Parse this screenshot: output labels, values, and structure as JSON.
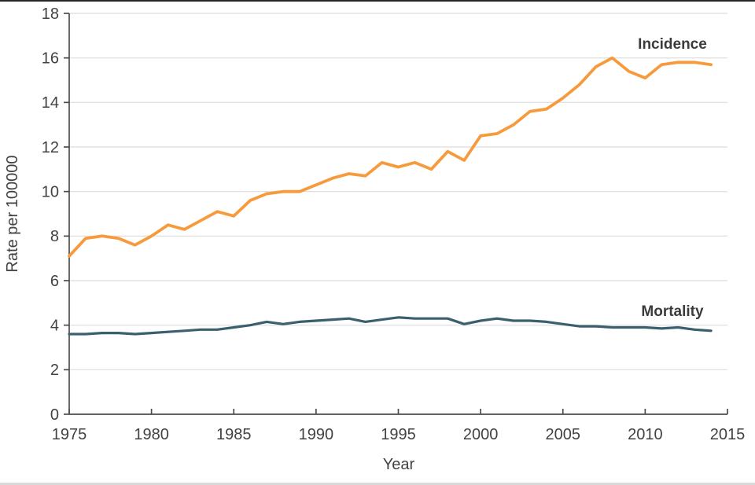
{
  "figure": {
    "xlabel_text": "Year",
    "ylabel_text": "Rate per 100000"
  },
  "chart_data": {
    "type": "line",
    "title": "",
    "xlabel": "Year",
    "ylabel": "Rate per 100000",
    "xlim": [
      1975,
      2015
    ],
    "ylim": [
      0,
      18
    ],
    "xticks": [
      1975,
      1980,
      1985,
      1990,
      1995,
      2000,
      2005,
      2010,
      2015
    ],
    "yticks": [
      0,
      2,
      4,
      6,
      8,
      10,
      12,
      14,
      16,
      18
    ],
    "grid": true,
    "legend_position": "inline-labels-right",
    "x": [
      1975,
      1976,
      1977,
      1978,
      1979,
      1980,
      1981,
      1982,
      1983,
      1984,
      1985,
      1986,
      1987,
      1988,
      1989,
      1990,
      1991,
      1992,
      1993,
      1994,
      1995,
      1996,
      1997,
      1998,
      1999,
      2000,
      2001,
      2002,
      2003,
      2004,
      2005,
      2006,
      2007,
      2008,
      2009,
      2010,
      2011,
      2012,
      2013,
      2014
    ],
    "series": [
      {
        "name": "Incidence",
        "color": "#F79A3C",
        "stroke_width": 3.8,
        "values": [
          7.1,
          7.9,
          8.0,
          7.9,
          7.6,
          8.0,
          8.5,
          8.3,
          8.7,
          9.1,
          8.9,
          9.6,
          9.9,
          10.0,
          10.0,
          10.3,
          10.6,
          10.8,
          10.7,
          11.3,
          11.1,
          11.3,
          11.0,
          11.8,
          11.4,
          12.5,
          12.6,
          13.0,
          13.6,
          13.7,
          14.2,
          14.8,
          15.6,
          16.0,
          15.4,
          15.1,
          15.7,
          15.8,
          15.8,
          15.7
        ]
      },
      {
        "name": "Mortality",
        "color": "#3A606E",
        "stroke_width": 3.2,
        "values": [
          3.6,
          3.6,
          3.65,
          3.65,
          3.6,
          3.65,
          3.7,
          3.75,
          3.8,
          3.8,
          3.9,
          4.0,
          4.15,
          4.05,
          4.15,
          4.2,
          4.25,
          4.3,
          4.15,
          4.25,
          4.35,
          4.3,
          4.3,
          4.3,
          4.05,
          4.2,
          4.3,
          4.2,
          4.2,
          4.15,
          4.05,
          3.95,
          3.95,
          3.9,
          3.9,
          3.9,
          3.85,
          3.9,
          3.8,
          3.75
        ]
      }
    ],
    "style": {
      "grid_color": "#E2E2E2",
      "axis_color": "#4D4D4D",
      "text_color": "#424242"
    }
  }
}
